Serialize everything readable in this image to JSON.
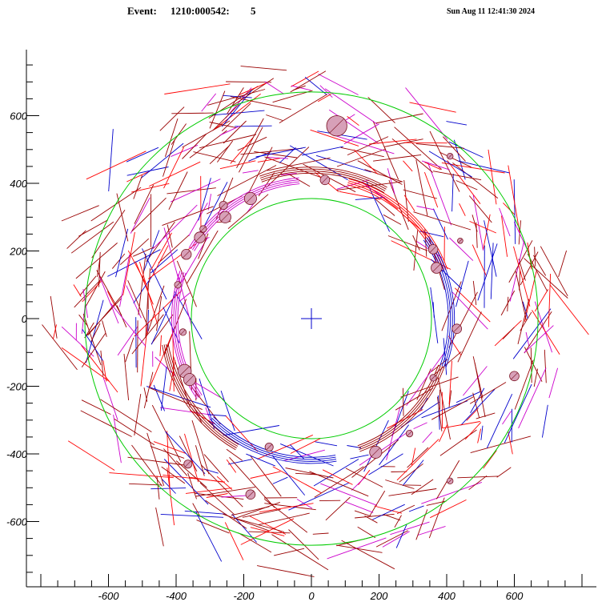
{
  "header": {
    "event_label": "Event:",
    "event_id": "1210:000542:",
    "event_number": "5",
    "timestamp": "Sun Aug 11 12:41:30 2024"
  },
  "chart_data": {
    "type": "scatter",
    "xlim": [
      -800,
      800
    ],
    "ylim": [
      -790,
      790
    ],
    "x_ticks": [
      -600,
      -400,
      -200,
      0,
      200,
      400,
      600
    ],
    "y_ticks": [
      600,
      400,
      200,
      0,
      -200,
      -400,
      -600
    ],
    "x_tick_labels": [
      "-600",
      "-400",
      "-200",
      "0",
      "200",
      "400",
      "600"
    ],
    "y_tick_labels": [
      "600",
      "400",
      "200",
      "0",
      "-200",
      "-400",
      "-600"
    ],
    "rings": [
      {
        "radius": 355,
        "color": "#00cc00"
      },
      {
        "radius": 670,
        "color": "#00cc00"
      }
    ],
    "center_marker": {
      "x": 0,
      "y": 0,
      "color": "#0000cc"
    },
    "track_colors": [
      "#990000",
      "#990000",
      "#990000",
      "#0000cc",
      "#cc00cc",
      "#ff0000"
    ],
    "clusters": [
      {
        "x": 75,
        "y": 570,
        "r": 30
      },
      {
        "x": -370,
        "y": 190,
        "r": 15
      },
      {
        "x": -255,
        "y": 300,
        "r": 17
      },
      {
        "x": -180,
        "y": 355,
        "r": 18
      },
      {
        "x": -260,
        "y": 335,
        "r": 12
      },
      {
        "x": -330,
        "y": 240,
        "r": 16
      },
      {
        "x": -375,
        "y": -155,
        "r": 20
      },
      {
        "x": -360,
        "y": -180,
        "r": 18
      },
      {
        "x": -365,
        "y": -430,
        "r": 12
      },
      {
        "x": -180,
        "y": -520,
        "r": 14
      },
      {
        "x": -125,
        "y": -380,
        "r": 12
      },
      {
        "x": 190,
        "y": -395,
        "r": 18
      },
      {
        "x": 360,
        "y": 205,
        "r": 14
      },
      {
        "x": 370,
        "y": 150,
        "r": 16
      },
      {
        "x": 430,
        "y": -30,
        "r": 14
      },
      {
        "x": 360,
        "y": -175,
        "r": 10
      },
      {
        "x": 600,
        "y": -170,
        "r": 14
      },
      {
        "x": 410,
        "y": -480,
        "r": 9
      },
      {
        "x": 40,
        "y": 410,
        "r": 14
      },
      {
        "x": -380,
        "y": -40,
        "r": 10
      },
      {
        "x": 410,
        "y": 480,
        "r": 9
      },
      {
        "x": -395,
        "y": 100,
        "r": 10
      },
      {
        "x": 290,
        "y": -340,
        "r": 10
      },
      {
        "x": 440,
        "y": 230,
        "r": 8
      },
      {
        "x": -320,
        "y": 265,
        "r": 10
      }
    ]
  }
}
